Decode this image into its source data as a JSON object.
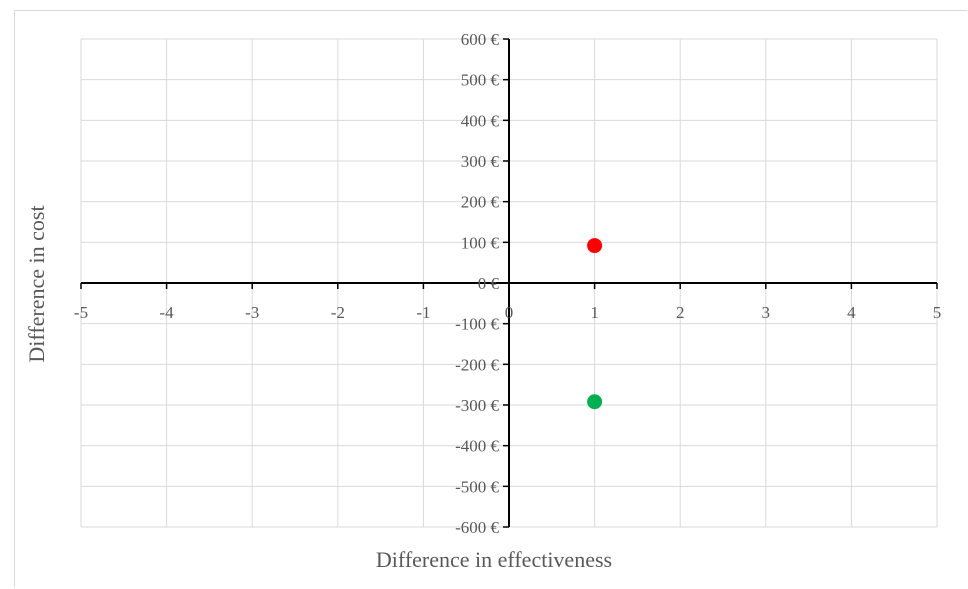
{
  "chart_data": {
    "type": "scatter",
    "xlabel": "Difference in effectiveness",
    "ylabel": "Difference in cost",
    "xlim": [
      -5,
      5
    ],
    "ylim": [
      -600,
      600
    ],
    "x_ticks": [
      -5,
      -4,
      -3,
      -2,
      -1,
      0,
      1,
      2,
      3,
      4,
      5
    ],
    "x_tick_labels": [
      "-5",
      "-4",
      "-3",
      "-2",
      "-1",
      "0",
      "1",
      "2",
      "3",
      "4",
      "5"
    ],
    "y_ticks": [
      600,
      500,
      400,
      300,
      200,
      100,
      0,
      -100,
      -200,
      -300,
      -400,
      -500,
      -600
    ],
    "y_tick_labels": [
      "600 €",
      "500 €",
      "400 €",
      "300 €",
      "200 €",
      "100 €",
      "0 €",
      "-100 €",
      "-200 €",
      "-300 €",
      "-400 €",
      "-500 €",
      "-600 €"
    ],
    "grid": true,
    "points": [
      {
        "x": 1,
        "y": 92,
        "color": "#ff0000"
      },
      {
        "x": 1,
        "y": -292,
        "color": "#00b050"
      }
    ]
  }
}
